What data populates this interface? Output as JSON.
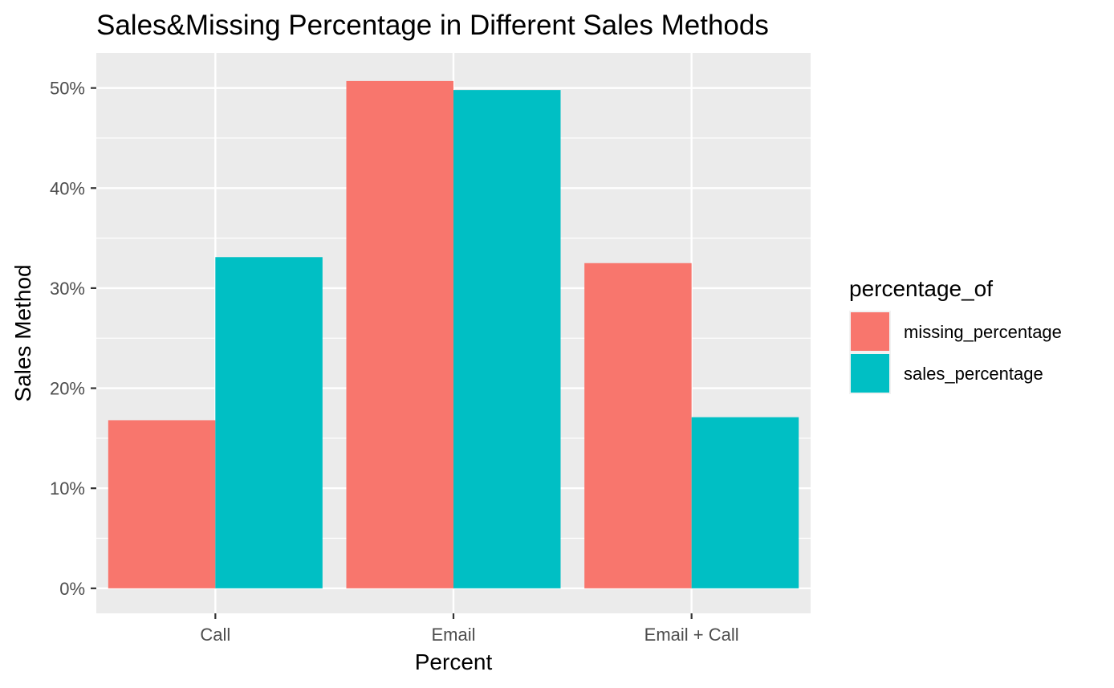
{
  "chart_data": {
    "type": "bar",
    "title": "Sales&Missing Percentage in Different Sales Methods",
    "xlabel": "Percent",
    "ylabel": "Sales Method",
    "categories": [
      "Call",
      "Email",
      "Email + Call"
    ],
    "series": [
      {
        "name": "missing_percentage",
        "color": "#F8766D",
        "values": [
          16.8,
          50.7,
          32.5
        ]
      },
      {
        "name": "sales_percentage",
        "color": "#00BFC4",
        "values": [
          33.1,
          49.8,
          17.1
        ]
      }
    ],
    "ylim": [
      -2.5,
      53.5
    ],
    "yticks": [
      0,
      10,
      20,
      30,
      40,
      50
    ],
    "ytick_labels": [
      "0%",
      "10%",
      "20%",
      "30%",
      "40%",
      "50%"
    ],
    "legend": {
      "title": "percentage_of",
      "position": "right"
    },
    "grid": true,
    "panel_background": "#EBEBEB",
    "gridline_color": "#FFFFFF"
  }
}
